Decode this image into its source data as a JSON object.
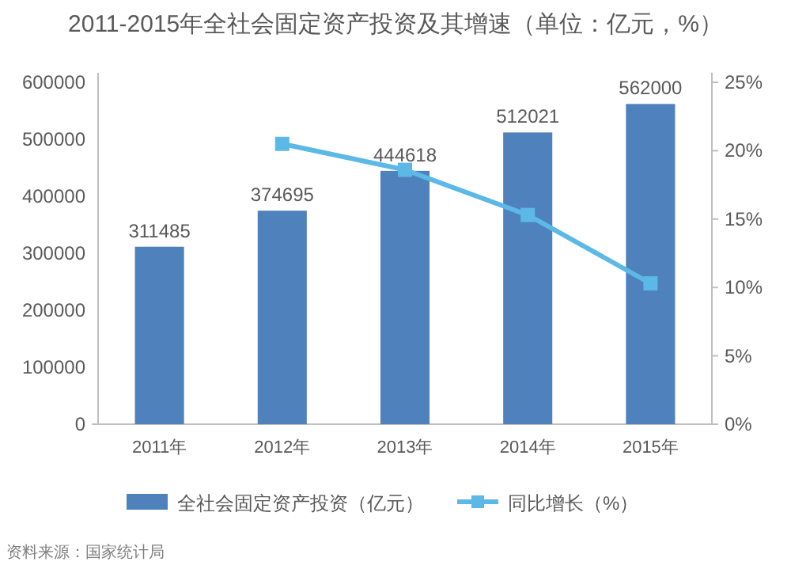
{
  "chart_data": {
    "type": "bar",
    "title": "2011-2015年全社会固定资产投资及其增速（单位：亿元，%）",
    "categories": [
      "2011年",
      "2012年",
      "2013年",
      "2014年",
      "2015年"
    ],
    "series": [
      {
        "name": "全社会固定资产投资（亿元）",
        "color": "#4f81bd",
        "values": [
          311485,
          374695,
          444618,
          512021,
          562000
        ],
        "value_labels": [
          "311485",
          "374695",
          "444618",
          "512021",
          "562000"
        ]
      },
      {
        "name": "同比增长（%）",
        "type": "line",
        "axis": "y2",
        "color": "#5cb8e6",
        "marker": "square",
        "values": [
          null,
          20.5,
          18.6,
          15.3,
          10.3
        ]
      }
    ],
    "ylim": [
      0,
      600000
    ],
    "yticks": [
      0,
      100000,
      200000,
      300000,
      400000,
      500000,
      600000
    ],
    "y2lim": [
      0,
      25
    ],
    "y2ticks": [
      {
        "value": 0,
        "label": "0%"
      },
      {
        "value": 5,
        "label": "5%"
      },
      {
        "value": 10,
        "label": "10%"
      },
      {
        "value": 15,
        "label": "15%"
      },
      {
        "value": 20,
        "label": "20%"
      },
      {
        "value": 25,
        "label": "25%"
      }
    ],
    "grid": false,
    "legend": "bottom",
    "annotations": [
      "资料来源：国家统计局"
    ]
  }
}
